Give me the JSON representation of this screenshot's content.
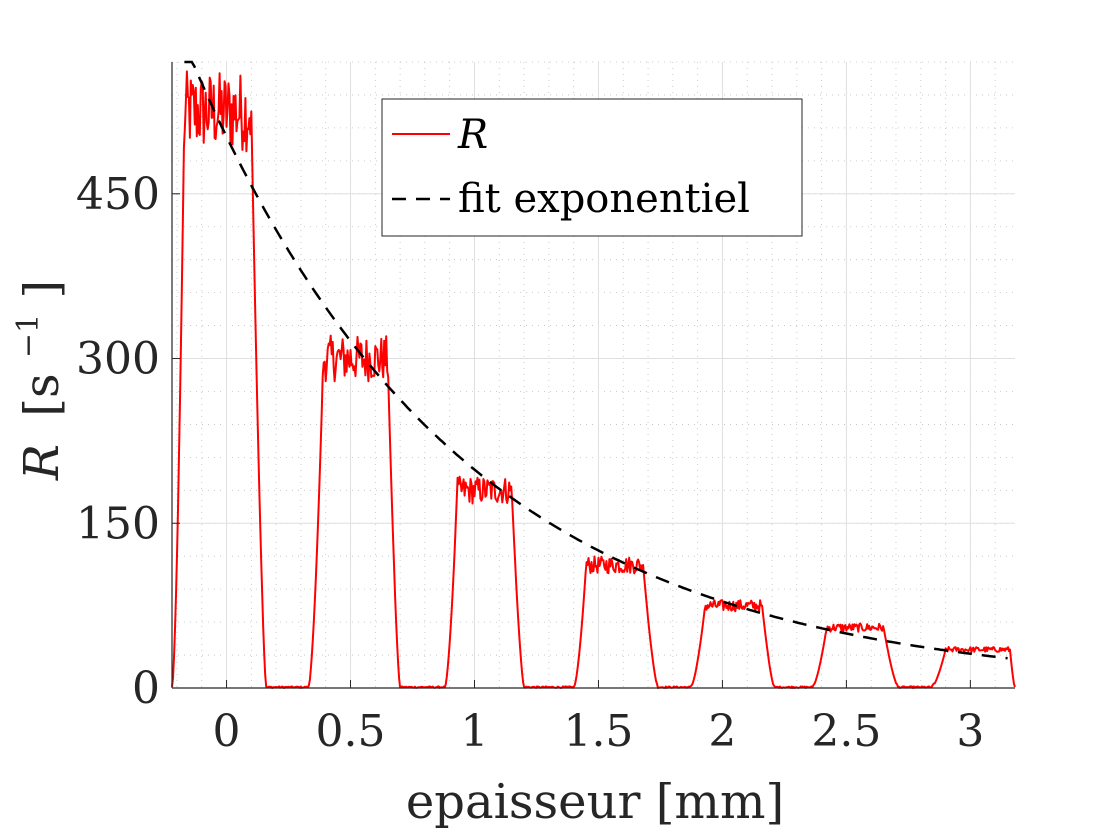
{
  "chart_data": {
    "type": "line",
    "xlabel": "epaisseur [mm]",
    "ylabel_symbol": "R",
    "ylabel_unit": "[s",
    "ylabel_exponent": "−1",
    "ylabel_close": "]",
    "xlim": [
      -0.22,
      3.18
    ],
    "ylim": [
      0,
      570
    ],
    "x_ticks": [
      0,
      0.5,
      1,
      1.5,
      2,
      2.5,
      3
    ],
    "x_tick_labels": [
      "0",
      "0.5",
      "1",
      "1.5",
      "2",
      "2.5",
      "3"
    ],
    "y_ticks": [
      0,
      150,
      300,
      450
    ],
    "y_tick_labels": [
      "0",
      "150",
      "300",
      "450"
    ],
    "grid": true,
    "minor_grid": true,
    "legend_position": "top-center",
    "series": [
      {
        "name": "R",
        "style": "solid",
        "color": "#ff0000",
        "plateaus": [
          {
            "x_start": -0.17,
            "x_end": 0.1,
            "level": 525,
            "x_rise_start": -0.22,
            "x_fall_end": 0.16
          },
          {
            "x_start": 0.39,
            "x_end": 0.65,
            "level": 300,
            "x_rise_start": 0.33,
            "x_fall_end": 0.7
          },
          {
            "x_start": 0.93,
            "x_end": 1.15,
            "level": 180,
            "x_rise_start": 0.88,
            "x_fall_end": 1.2
          },
          {
            "x_start": 1.45,
            "x_end": 1.68,
            "level": 112,
            "x_rise_start": 1.4,
            "x_fall_end": 1.74
          },
          {
            "x_start": 1.93,
            "x_end": 2.16,
            "level": 75,
            "x_rise_start": 1.87,
            "x_fall_end": 2.21
          },
          {
            "x_start": 2.42,
            "x_end": 2.65,
            "level": 55,
            "x_rise_start": 2.36,
            "x_fall_end": 2.71
          },
          {
            "x_start": 2.9,
            "x_end": 3.16,
            "level": 35,
            "x_rise_start": 2.84,
            "x_fall_end": 3.18
          }
        ]
      },
      {
        "name": "fit exponentiel",
        "style": "dashed",
        "color": "#000000",
        "model": "A*exp(-x/tau)",
        "A": 502,
        "tau": 1.08,
        "x_start": -0.17,
        "x_end": 3.15
      }
    ]
  },
  "colors": {
    "axis": "#262626",
    "grid": "#dfdfdf",
    "minor_grid": "#bfbfbf"
  }
}
